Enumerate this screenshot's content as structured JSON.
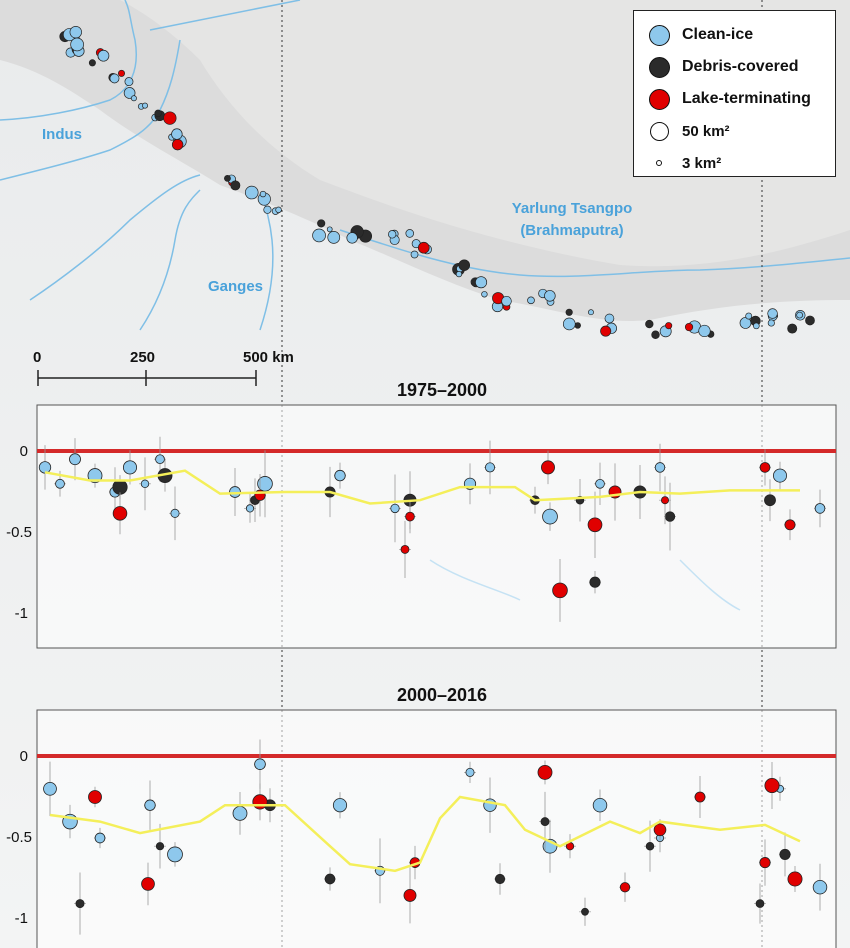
{
  "legend": {
    "items": [
      {
        "label": "Clean-ice",
        "color": "#8ec8ec",
        "size": 21
      },
      {
        "label": "Debris-covered",
        "color": "#2b2b2b",
        "size": 21
      },
      {
        "label": "Lake-terminating",
        "color": "#e00000",
        "size": 21
      },
      {
        "label": "50 km²",
        "color": "#ffffff",
        "size": 19
      },
      {
        "label": "3 km²",
        "color": "#ffffff",
        "size": 6
      }
    ]
  },
  "map": {
    "rivers": [
      "Indus",
      "Ganges",
      "Yarlung Tsangpo",
      "(Brahmaputra)"
    ],
    "scale_bar": {
      "ticks": [
        "0",
        "250",
        "500 km"
      ]
    }
  },
  "panels": [
    {
      "title": "1975–2000",
      "yticks": [
        "0",
        "-0.5",
        "-1"
      ]
    },
    {
      "title": "2000–2016",
      "yticks": [
        "0",
        "-0.5",
        "-1"
      ]
    }
  ],
  "colors": {
    "clean_ice": "#8ec8ec",
    "debris": "#2b2b2b",
    "lake": "#e00000",
    "zero_line": "#d42a2a",
    "mean_line": "#f4ef5a",
    "river": "#7fbfe6"
  },
  "chart_data": [
    {
      "type": "scatter",
      "title": "1975–2000",
      "ylim": [
        -1.2,
        0.3
      ],
      "xlabel": "",
      "ylabel": "",
      "series": [
        {
          "name": "Clean-ice",
          "color": "#8ec8ec",
          "values": [
            {
              "x": 45,
              "y": -0.1
            },
            {
              "x": 60,
              "y": -0.2
            },
            {
              "x": 75,
              "y": -0.05
            },
            {
              "x": 95,
              "y": -0.15
            },
            {
              "x": 115,
              "y": -0.25
            },
            {
              "x": 130,
              "y": -0.1
            },
            {
              "x": 145,
              "y": -0.2
            },
            {
              "x": 160,
              "y": -0.05
            },
            {
              "x": 175,
              "y": -0.38
            },
            {
              "x": 235,
              "y": -0.25
            },
            {
              "x": 250,
              "y": -0.35
            },
            {
              "x": 265,
              "y": -0.2
            },
            {
              "x": 340,
              "y": -0.15
            },
            {
              "x": 395,
              "y": -0.35
            },
            {
              "x": 470,
              "y": -0.2
            },
            {
              "x": 490,
              "y": -0.1
            },
            {
              "x": 550,
              "y": -0.4
            },
            {
              "x": 600,
              "y": -0.2
            },
            {
              "x": 660,
              "y": -0.1
            },
            {
              "x": 780,
              "y": -0.15
            },
            {
              "x": 820,
              "y": -0.35
            }
          ]
        },
        {
          "name": "Debris-covered",
          "color": "#2b2b2b",
          "values": [
            {
              "x": 120,
              "y": -0.22
            },
            {
              "x": 165,
              "y": -0.15
            },
            {
              "x": 255,
              "y": -0.3
            },
            {
              "x": 330,
              "y": -0.25
            },
            {
              "x": 410,
              "y": -0.3
            },
            {
              "x": 535,
              "y": -0.3
            },
            {
              "x": 580,
              "y": -0.3
            },
            {
              "x": 595,
              "y": -0.8
            },
            {
              "x": 640,
              "y": -0.25
            },
            {
              "x": 670,
              "y": -0.4
            },
            {
              "x": 770,
              "y": -0.3
            }
          ]
        },
        {
          "name": "Lake-terminating",
          "color": "#e00000",
          "values": [
            {
              "x": 120,
              "y": -0.38
            },
            {
              "x": 260,
              "y": -0.27
            },
            {
              "x": 410,
              "y": -0.4
            },
            {
              "x": 405,
              "y": -0.6
            },
            {
              "x": 548,
              "y": -0.1
            },
            {
              "x": 560,
              "y": -0.85
            },
            {
              "x": 595,
              "y": -0.45
            },
            {
              "x": 615,
              "y": -0.25
            },
            {
              "x": 665,
              "y": -0.3
            },
            {
              "x": 765,
              "y": -0.1
            },
            {
              "x": 790,
              "y": -0.45
            }
          ]
        },
        {
          "name": "Mean",
          "color": "#f4ef5a",
          "values": [
            {
              "x": 45,
              "y": -0.13
            },
            {
              "x": 90,
              "y": -0.18
            },
            {
              "x": 130,
              "y": -0.18
            },
            {
              "x": 185,
              "y": -0.12
            },
            {
              "x": 220,
              "y": -0.26
            },
            {
              "x": 285,
              "y": -0.25
            },
            {
              "x": 330,
              "y": -0.25
            },
            {
              "x": 370,
              "y": -0.32
            },
            {
              "x": 420,
              "y": -0.3
            },
            {
              "x": 460,
              "y": -0.22
            },
            {
              "x": 515,
              "y": -0.22
            },
            {
              "x": 535,
              "y": -0.3
            },
            {
              "x": 600,
              "y": -0.28
            },
            {
              "x": 640,
              "y": -0.25
            },
            {
              "x": 680,
              "y": -0.26
            },
            {
              "x": 730,
              "y": -0.24
            },
            {
              "x": 800,
              "y": -0.24
            }
          ]
        }
      ]
    },
    {
      "type": "scatter",
      "title": "2000–2016",
      "ylim": [
        -1.2,
        0.3
      ],
      "xlabel": "",
      "ylabel": "",
      "series": [
        {
          "name": "Clean-ice",
          "color": "#8ec8ec",
          "values": [
            {
              "x": 50,
              "y": -0.2
            },
            {
              "x": 70,
              "y": -0.4
            },
            {
              "x": 100,
              "y": -0.5
            },
            {
              "x": 150,
              "y": -0.3
            },
            {
              "x": 175,
              "y": -0.6
            },
            {
              "x": 240,
              "y": -0.35
            },
            {
              "x": 260,
              "y": -0.05
            },
            {
              "x": 340,
              "y": -0.3
            },
            {
              "x": 380,
              "y": -0.7
            },
            {
              "x": 470,
              "y": -0.1
            },
            {
              "x": 490,
              "y": -0.3
            },
            {
              "x": 550,
              "y": -0.55
            },
            {
              "x": 600,
              "y": -0.3
            },
            {
              "x": 660,
              "y": -0.5
            },
            {
              "x": 780,
              "y": -0.2
            },
            {
              "x": 820,
              "y": -0.8
            }
          ]
        },
        {
          "name": "Debris-covered",
          "color": "#2b2b2b",
          "values": [
            {
              "x": 80,
              "y": -0.9
            },
            {
              "x": 160,
              "y": -0.55
            },
            {
              "x": 270,
              "y": -0.3
            },
            {
              "x": 330,
              "y": -0.75
            },
            {
              "x": 500,
              "y": -0.75
            },
            {
              "x": 545,
              "y": -0.4
            },
            {
              "x": 585,
              "y": -0.95
            },
            {
              "x": 650,
              "y": -0.55
            },
            {
              "x": 760,
              "y": -0.9
            },
            {
              "x": 785,
              "y": -0.6
            }
          ]
        },
        {
          "name": "Lake-terminating",
          "color": "#e00000",
          "values": [
            {
              "x": 95,
              "y": -0.25
            },
            {
              "x": 148,
              "y": -0.78
            },
            {
              "x": 260,
              "y": -0.28
            },
            {
              "x": 410,
              "y": -0.85
            },
            {
              "x": 415,
              "y": -0.65
            },
            {
              "x": 545,
              "y": -0.1
            },
            {
              "x": 570,
              "y": -0.55
            },
            {
              "x": 625,
              "y": -0.8
            },
            {
              "x": 660,
              "y": -0.45
            },
            {
              "x": 700,
              "y": -0.25
            },
            {
              "x": 772,
              "y": -0.18
            },
            {
              "x": 765,
              "y": -0.65
            },
            {
              "x": 795,
              "y": -0.75
            }
          ]
        },
        {
          "name": "Mean",
          "color": "#f4ef5a",
          "values": [
            {
              "x": 50,
              "y": -0.36
            },
            {
              "x": 100,
              "y": -0.4
            },
            {
              "x": 140,
              "y": -0.47
            },
            {
              "x": 200,
              "y": -0.4
            },
            {
              "x": 225,
              "y": -0.3
            },
            {
              "x": 285,
              "y": -0.3
            },
            {
              "x": 330,
              "y": -0.55
            },
            {
              "x": 350,
              "y": -0.66
            },
            {
              "x": 395,
              "y": -0.7
            },
            {
              "x": 420,
              "y": -0.65
            },
            {
              "x": 440,
              "y": -0.38
            },
            {
              "x": 460,
              "y": -0.25
            },
            {
              "x": 505,
              "y": -0.3
            },
            {
              "x": 525,
              "y": -0.45
            },
            {
              "x": 560,
              "y": -0.55
            },
            {
              "x": 610,
              "y": -0.4
            },
            {
              "x": 640,
              "y": -0.47
            },
            {
              "x": 660,
              "y": -0.4
            },
            {
              "x": 720,
              "y": -0.45
            },
            {
              "x": 765,
              "y": -0.42
            },
            {
              "x": 800,
              "y": -0.52
            }
          ]
        }
      ]
    }
  ]
}
